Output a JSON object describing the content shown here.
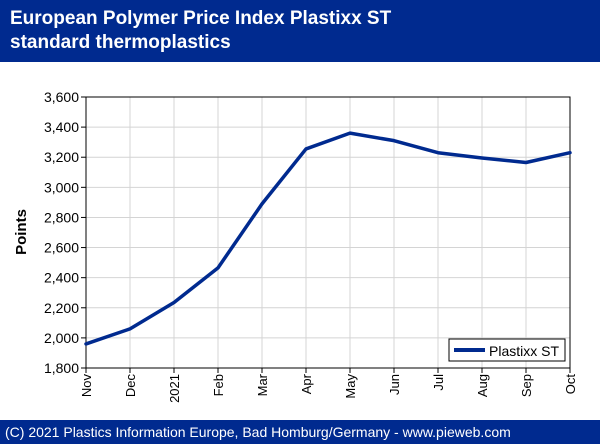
{
  "header": {
    "title": "European Polymer Price Index Plastixx ST\nstandard thermoplastics",
    "background_color": "#002a8f"
  },
  "footer": {
    "text": "(C) 2021 Plastics Information Europe, Bad Homburg/Germany - www.pieweb.com"
  },
  "chart_data": {
    "type": "line",
    "title": "European Polymer Price Index Plastixx ST\nstandard thermoplastics",
    "xlabel": "",
    "ylabel": "Points",
    "categories": [
      "Nov",
      "Dec",
      "2021",
      "Feb",
      "Mar",
      "Apr",
      "May",
      "Jun",
      "Jul",
      "Aug",
      "Sep",
      "Oct"
    ],
    "yticks": [
      "1,800",
      "2,000",
      "2,200",
      "2,400",
      "2,600",
      "2,800",
      "3,000",
      "3,200",
      "3,400",
      "3,600"
    ],
    "ylim": [
      1800,
      3600
    ],
    "grid": true,
    "legend_position": "bottom-right",
    "series": [
      {
        "name": "Plastixx ST",
        "color": "#002a8f",
        "values": [
          1960,
          2060,
          2235,
          2465,
          2890,
          3255,
          3360,
          3310,
          3230,
          3195,
          3165,
          3230
        ]
      }
    ]
  }
}
